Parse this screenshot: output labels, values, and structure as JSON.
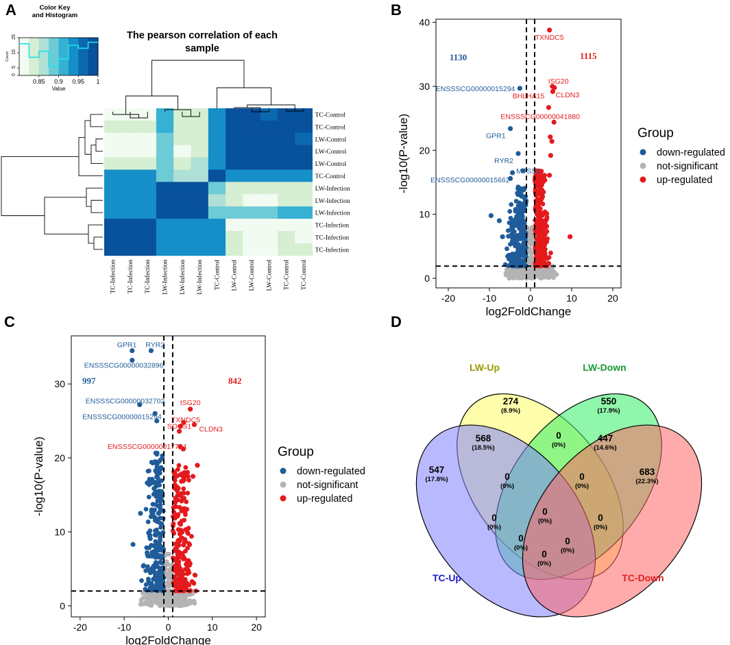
{
  "figure_labels": {
    "a": "A",
    "b": "B",
    "c": "C",
    "d": "D"
  },
  "chart_data": [
    {
      "id": "A",
      "type": "heatmap",
      "title": "The pearson correlation of each sample",
      "color_key": {
        "title": "Color Key and Histogram",
        "xlabel": "Value",
        "ylabel": "Count",
        "x_ticks": [
          "0.85",
          "0.9",
          "0.95",
          "1"
        ],
        "y_ticks": [
          "0",
          "5",
          "15",
          "25"
        ],
        "range": [
          0.8,
          1.0
        ],
        "colors": [
          "#f2fbf2",
          "#d6efd2",
          "#aee0d6",
          "#6dcbd6",
          "#36b1d4",
          "#168fc8",
          "#0c69b0",
          "#08519c"
        ],
        "histogram_counts": [
          21,
          12,
          16,
          6,
          11,
          20,
          18,
          22
        ]
      },
      "row_labels": [
        "TC-Control",
        "TC-Control",
        "LW-Control",
        "LW-Control",
        "LW-Control",
        "TC-Control",
        "LW-Infection",
        "LW-Infection",
        "LW-Infection",
        "TC-Infection",
        "TC-Infection",
        "TC-Infection"
      ],
      "col_labels": [
        "TC-Infection",
        "TC-Infection",
        "TC-Infection",
        "LW-Infection",
        "LW-Infection",
        "LW-Infection",
        "TC-Control",
        "LW-Control",
        "LW-Control",
        "LW-Control",
        "TC-Control",
        "TC-Control"
      ],
      "values": [
        [
          0.82,
          0.82,
          0.82,
          0.91,
          0.84,
          0.84,
          0.95,
          0.99,
          0.99,
          0.97,
          1.0,
          0.99
        ],
        [
          0.84,
          0.83,
          0.83,
          0.92,
          0.85,
          0.85,
          0.95,
          0.99,
          0.99,
          0.98,
          0.99,
          1.0
        ],
        [
          0.82,
          0.82,
          0.82,
          0.89,
          0.83,
          0.83,
          0.93,
          1.0,
          1.0,
          1.0,
          0.98,
          0.97
        ],
        [
          0.82,
          0.82,
          0.82,
          0.88,
          0.81,
          0.84,
          0.93,
          1.0,
          1.0,
          1.0,
          0.98,
          0.98
        ],
        [
          0.84,
          0.83,
          0.83,
          0.89,
          0.84,
          0.86,
          0.93,
          1.0,
          1.0,
          1.0,
          0.98,
          0.98
        ],
        [
          0.93,
          0.93,
          0.94,
          0.88,
          0.87,
          0.87,
          1.0,
          0.93,
          0.93,
          0.93,
          0.95,
          0.95
        ],
        [
          0.95,
          0.95,
          0.95,
          0.98,
          0.98,
          1.0,
          0.88,
          0.85,
          0.84,
          0.84,
          0.84,
          0.84
        ],
        [
          0.95,
          0.95,
          0.95,
          0.98,
          1.0,
          0.98,
          0.87,
          0.83,
          0.82,
          0.82,
          0.83,
          0.83
        ],
        [
          0.95,
          0.95,
          0.95,
          1.0,
          0.98,
          0.98,
          0.88,
          0.89,
          0.89,
          0.89,
          0.91,
          0.9
        ],
        [
          1.0,
          1.0,
          1.0,
          0.95,
          0.95,
          0.95,
          0.93,
          0.82,
          0.82,
          0.82,
          0.82,
          0.82
        ],
        [
          1.0,
          1.0,
          1.0,
          0.95,
          0.95,
          0.95,
          0.94,
          0.83,
          0.82,
          0.82,
          0.83,
          0.82
        ],
        [
          1.0,
          1.0,
          1.0,
          0.95,
          0.95,
          0.95,
          0.94,
          0.84,
          0.82,
          0.82,
          0.85,
          0.83
        ]
      ]
    },
    {
      "id": "B",
      "type": "scatter",
      "xlabel": "log2FoldChange",
      "ylabel": "-log10(P-value)",
      "xlim": [
        -23,
        22
      ],
      "ylim": [
        -1.5,
        40.5
      ],
      "x_ticks": [
        -20,
        -10,
        0,
        10,
        20
      ],
      "y_ticks": [
        0,
        10,
        20,
        30,
        40
      ],
      "vlines": [
        -1,
        1
      ],
      "hline": 1.9,
      "counts": {
        "down": "1130",
        "up": "1115"
      },
      "series": [
        {
          "name": "down-regulated",
          "color": "#1f5c99",
          "points": [
            [
              -2.6,
              29.7
            ],
            [
              -4.9,
              23.4
            ],
            [
              -3.0,
              19.5
            ],
            [
              -4.4,
              16.5
            ],
            [
              -4.9,
              15.6
            ],
            [
              -1.8,
              16.8
            ],
            [
              -9.6,
              9.8
            ],
            [
              -7.6,
              9.0
            ],
            [
              -6.8,
              6.5
            ]
          ]
        },
        {
          "name": "not-significant",
          "color": "#b3b3b3",
          "points": []
        },
        {
          "name": "up-regulated",
          "color": "#e41a1c",
          "points": [
            [
              4.6,
              38.8
            ],
            [
              5.3,
              30.0
            ],
            [
              5.8,
              29.8
            ],
            [
              5.4,
              29.2
            ],
            [
              4.4,
              26.7
            ],
            [
              5.7,
              24.4
            ],
            [
              4.8,
              22.1
            ],
            [
              5.2,
              21.4
            ],
            [
              4.9,
              19.2
            ],
            [
              4.6,
              16.1
            ],
            [
              9.6,
              6.5
            ]
          ]
        }
      ],
      "annotations": [
        {
          "text": "TXNDC5",
          "x": 4.6,
          "y": 38.8,
          "color": "#e41a1c"
        },
        {
          "text": "ISG20",
          "x": 5.3,
          "y": 30.0,
          "color": "#e41a1c"
        },
        {
          "text": "CLDN3",
          "x": 5.8,
          "y": 29.8,
          "color": "#e41a1c"
        },
        {
          "text": "BHLHA15",
          "x": 4.4,
          "y": 29.0,
          "color": "#e41a1c"
        },
        {
          "text": "ENSSSCG00000041880",
          "x": 5.7,
          "y": 24.4,
          "color": "#e41a1c"
        },
        {
          "text": "ENSSSCG00000015294",
          "x": -2.6,
          "y": 29.7,
          "color": "#1f5c99"
        },
        {
          "text": "GPR1",
          "x": -4.9,
          "y": 23.4,
          "color": "#1f5c99"
        },
        {
          "text": "RYR2",
          "x": -3.0,
          "y": 19.5,
          "color": "#1f5c99"
        },
        {
          "text": "ENSSSCG00000015662",
          "x": -4.4,
          "y": 16.5,
          "color": "#1f5c99"
        },
        {
          "text": "MTSS1",
          "x": -1.8,
          "y": 16.8,
          "color": "#1f5c99"
        }
      ],
      "legend": {
        "title": "Group",
        "items": [
          "down-regulated",
          "not-significant",
          "up-regulated"
        ],
        "colors": [
          "#1f5c99",
          "#b3b3b3",
          "#e41a1c"
        ]
      }
    },
    {
      "id": "C",
      "type": "scatter",
      "xlabel": "log2FoldChange",
      "ylabel": "-log10(P-value)",
      "xlim": [
        -22,
        22
      ],
      "ylim": [
        -1.5,
        36.5
      ],
      "x_ticks": [
        -20,
        -10,
        0,
        10,
        20
      ],
      "y_ticks": [
        0,
        10,
        20,
        30
      ],
      "vlines": [
        -1,
        1
      ],
      "hline": 2.0,
      "counts": {
        "down": "997",
        "up": "842"
      },
      "series": [
        {
          "name": "down-regulated",
          "color": "#1f5c99",
          "points": [
            [
              -8.2,
              34.5
            ],
            [
              -3.9,
              34.5
            ],
            [
              -8.2,
              33.2
            ],
            [
              -6.5,
              27.2
            ],
            [
              -3.0,
              26.0
            ],
            [
              -2.6,
              25.0
            ],
            [
              -8.0,
              8.3
            ],
            [
              -6.3,
              12.5
            ]
          ]
        },
        {
          "name": "not-significant",
          "color": "#b3b3b3",
          "points": []
        },
        {
          "name": "up-regulated",
          "color": "#e41a1c",
          "points": [
            [
              5.0,
              26.6
            ],
            [
              3.5,
              24.8
            ],
            [
              5.9,
              24.5
            ],
            [
              2.8,
              24.3
            ],
            [
              2.5,
              23.6
            ],
            [
              2.7,
              21.5
            ],
            [
              3.4,
              21.2
            ],
            [
              6.6,
              19.0
            ],
            [
              5.6,
              17.5
            ]
          ]
        }
      ],
      "annotations": [
        {
          "text": "GPR1",
          "x": -8.2,
          "y": 34.5,
          "color": "#1f5c99"
        },
        {
          "text": "RYR2",
          "x": -3.9,
          "y": 34.5,
          "color": "#1f5c99"
        },
        {
          "text": "ENSSSCG00000032896",
          "x": -8.2,
          "y": 33.2,
          "color": "#1f5c99"
        },
        {
          "text": "ENSSSCG00000032702",
          "x": -6.5,
          "y": 27.2,
          "color": "#1f5c99"
        },
        {
          "text": "ENSSSCG00000015294",
          "x": -3.0,
          "y": 26.0,
          "color": "#1f5c99"
        },
        {
          "text": "ISG20",
          "x": 5.0,
          "y": 26.6,
          "color": "#e41a1c"
        },
        {
          "text": "TXNDC5",
          "x": 3.5,
          "y": 24.8,
          "color": "#e41a1c"
        },
        {
          "text": "CLDN3",
          "x": 5.9,
          "y": 24.5,
          "color": "#e41a1c"
        },
        {
          "text": "SOCS1",
          "x": 2.8,
          "y": 24.3,
          "color": "#e41a1c"
        },
        {
          "text": "ENSSSCG00000017754",
          "x": 2.7,
          "y": 21.5,
          "color": "#e41a1c"
        }
      ],
      "legend": {
        "title": "Group",
        "items": [
          "down-regulated",
          "not-significant",
          "up-regulated"
        ],
        "colors": [
          "#1f5c99",
          "#b3b3b3",
          "#e41a1c"
        ]
      }
    },
    {
      "id": "D",
      "type": "venn",
      "sets": [
        {
          "name": "LW-Up",
          "color": "#ffff66",
          "label_color": "#999900"
        },
        {
          "name": "LW-Down",
          "color": "#33ee66",
          "label_color": "#1a9933"
        },
        {
          "name": "TC-Up",
          "color": "#8080ff",
          "label_color": "#1a1acc"
        },
        {
          "name": "TC-Down",
          "color": "#ff6666",
          "label_color": "#e02020"
        }
      ],
      "regions": [
        {
          "sets": [
            "LW-Up"
          ],
          "count": "274",
          "percent": "(8.9%)"
        },
        {
          "sets": [
            "LW-Down"
          ],
          "count": "550",
          "percent": "(17.9%)"
        },
        {
          "sets": [
            "TC-Up"
          ],
          "count": "547",
          "percent": "(17.8%)"
        },
        {
          "sets": [
            "TC-Down"
          ],
          "count": "683",
          "percent": "(22.3%)"
        },
        {
          "sets": [
            "LW-Up",
            "TC-Up"
          ],
          "count": "568",
          "percent": "(18.5%)"
        },
        {
          "sets": [
            "LW-Up",
            "LW-Down"
          ],
          "count": "0",
          "percent": "(0%)"
        },
        {
          "sets": [
            "LW-Down",
            "TC-Down"
          ],
          "count": "447",
          "percent": "(14.6%)"
        },
        {
          "sets": [
            "LW-Up",
            "LW-Down",
            "TC-Up"
          ],
          "count": "0",
          "percent": "(0%)"
        },
        {
          "sets": [
            "LW-Up",
            "LW-Down",
            "TC-Down"
          ],
          "count": "0",
          "percent": "(0%)"
        },
        {
          "sets": [
            "LW-Down",
            "TC-Up"
          ],
          "count": "0",
          "percent": "(0%)"
        },
        {
          "sets": [
            "LW-Up",
            "TC-Down"
          ],
          "count": "0",
          "percent": "(0%)"
        },
        {
          "sets": [
            "LW-Up",
            "LW-Down",
            "TC-Up",
            "TC-Down"
          ],
          "count": "0",
          "percent": "(0%)"
        },
        {
          "sets": [
            "LW-Down",
            "TC-Up",
            "TC-Down"
          ],
          "count": "0",
          "percent": "(0%)"
        },
        {
          "sets": [
            "LW-Up",
            "TC-Up",
            "TC-Down"
          ],
          "count": "0",
          "percent": "(0%)"
        },
        {
          "sets": [
            "TC-Up",
            "TC-Down"
          ],
          "count": "0",
          "percent": "(0%)"
        }
      ]
    }
  ]
}
